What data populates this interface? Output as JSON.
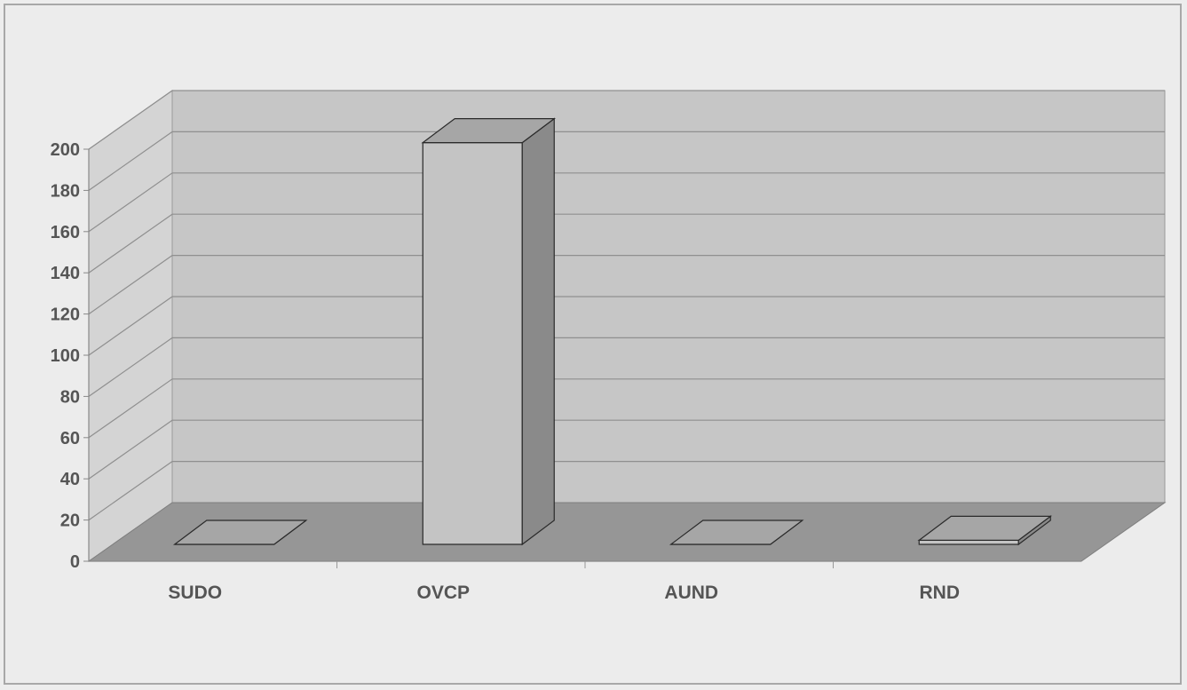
{
  "chart_data": {
    "type": "bar",
    "title": "",
    "xlabel": "",
    "ylabel": "",
    "categories": [
      "SUDO",
      "OVCP",
      "AUND",
      "RND"
    ],
    "values": [
      0,
      195,
      0,
      2
    ],
    "ylim": [
      0,
      200
    ],
    "yticks": [
      0,
      20,
      40,
      60,
      80,
      100,
      120,
      140,
      160,
      180,
      200
    ],
    "ytick_labels": [
      "0",
      "20",
      "40",
      "60",
      "80",
      "100",
      "120",
      "140",
      "160",
      "180",
      "200"
    ],
    "grid": true,
    "legend": "none",
    "style": "3d-column",
    "colors": {
      "background": "#ececec",
      "back_wall": "#c6c6c6",
      "side_wall": "#d4d4d4",
      "floor": "#969696",
      "gridline": "#8f8f8f",
      "bar_front": "#c4c4c4",
      "bar_top": "#a6a6a6",
      "bar_side": "#8a8a8a",
      "bar_outline": "#2a2a2a",
      "text": "#555555"
    }
  }
}
